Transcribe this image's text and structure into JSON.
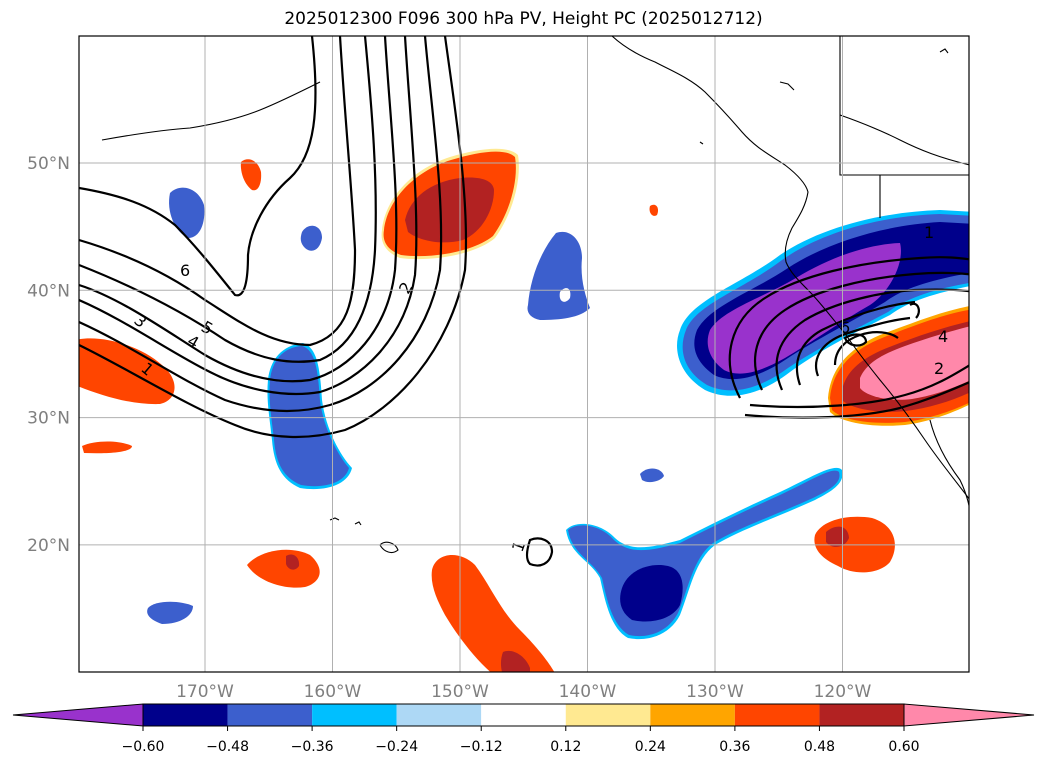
{
  "title": "2025012300 F096 300 hPa PV, Height PC (2025012712)",
  "lat_labels": [
    {
      "lat": 50,
      "text": "50°N"
    },
    {
      "lat": 40,
      "text": "40°N"
    },
    {
      "lat": 30,
      "text": "30°N"
    },
    {
      "lat": 20,
      "text": "20°N"
    }
  ],
  "lon_labels": [
    {
      "lon": -170,
      "text": "170°W"
    },
    {
      "lon": -160,
      "text": "160°W"
    },
    {
      "lon": -150,
      "text": "150°W"
    },
    {
      "lon": -140,
      "text": "140°W"
    },
    {
      "lon": -130,
      "text": "130°W"
    },
    {
      "lon": -120,
      "text": "120°W"
    }
  ],
  "colorbar": {
    "colors": [
      "#9932cc",
      "#00008b",
      "#3c5fcd",
      "#00bfff",
      "#add8f5",
      "#ffffff",
      "#ffe991",
      "#ffa500",
      "#ff4500",
      "#b22222",
      "#ff88aa"
    ],
    "ticks": [
      "−0.60",
      "−0.48",
      "−0.36",
      "−0.24",
      "−0.12",
      "0.12",
      "0.24",
      "0.36",
      "0.48",
      "0.60"
    ]
  },
  "contour_labels": [
    "6",
    "5",
    "4",
    "3",
    "1",
    "2",
    "6",
    "4",
    "2",
    "1",
    "1"
  ]
}
